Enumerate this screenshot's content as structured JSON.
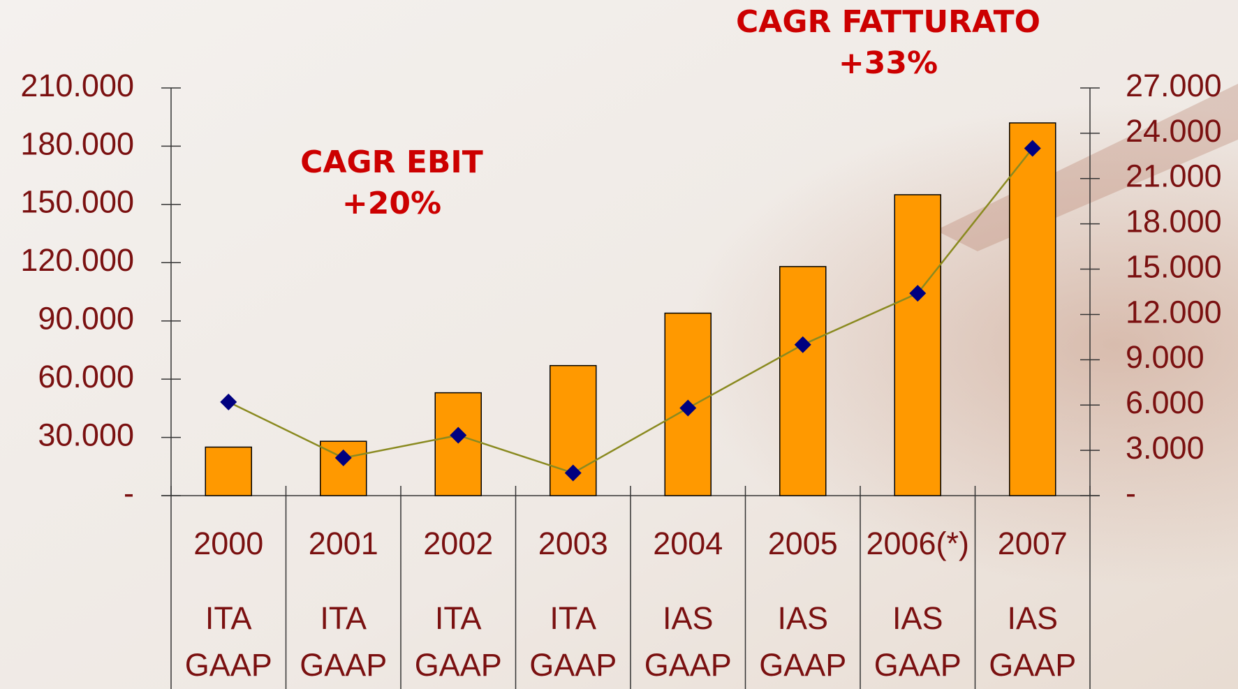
{
  "chart_data": {
    "type": "bar-line",
    "categories": [
      "2000",
      "2001",
      "2002",
      "2003",
      "2004",
      "2005",
      "2006(*)",
      "2007"
    ],
    "standards": [
      [
        "ITA",
        "GAAP"
      ],
      [
        "ITA",
        "GAAP"
      ],
      [
        "ITA",
        "GAAP"
      ],
      [
        "ITA",
        "GAAP"
      ],
      [
        "IAS",
        "GAAP"
      ],
      [
        "IAS",
        "GAAP"
      ],
      [
        "IAS",
        "GAAP"
      ],
      [
        "IAS",
        "GAAP"
      ]
    ],
    "annotations": [
      [
        "CAGR FATTURATO",
        "+33%"
      ],
      [
        "CAGR EBIT",
        "+20%"
      ]
    ],
    "series": [
      {
        "type": "bar",
        "color": "#ff9900",
        "values": [
          25000,
          28000,
          53000,
          67000,
          94000,
          118000,
          155000,
          192000
        ]
      },
      {
        "type": "line",
        "axis": "y2",
        "color": "#8a8a20",
        "marker_color": "#000080",
        "values": [
          6200,
          2500,
          4000,
          1500,
          5800,
          10000,
          13400,
          23000
        ]
      }
    ],
    "ylim": [
      0,
      210000
    ],
    "yticks": [
      {
        "value": 0,
        "label": "-"
      },
      {
        "value": 30000,
        "label": "30.000"
      },
      {
        "value": 60000,
        "label": "60.000"
      },
      {
        "value": 90000,
        "label": "90.000"
      },
      {
        "value": 120000,
        "label": "120.000"
      },
      {
        "value": 150000,
        "label": "150.000"
      },
      {
        "value": 180000,
        "label": "180.000"
      },
      {
        "value": 210000,
        "label": "210.000"
      }
    ],
    "y2lim": [
      0,
      27000
    ],
    "y2ticks": [
      {
        "value": 0,
        "label": "-"
      },
      {
        "value": 3000,
        "label": "3.000"
      },
      {
        "value": 6000,
        "label": "6.000"
      },
      {
        "value": 9000,
        "label": "9.000"
      },
      {
        "value": 12000,
        "label": "12.000"
      },
      {
        "value": 15000,
        "label": "15.000"
      },
      {
        "value": 18000,
        "label": "18.000"
      },
      {
        "value": 21000,
        "label": "21.000"
      },
      {
        "value": 24000,
        "label": "24.000"
      },
      {
        "value": 27000,
        "label": "27.000"
      }
    ]
  }
}
